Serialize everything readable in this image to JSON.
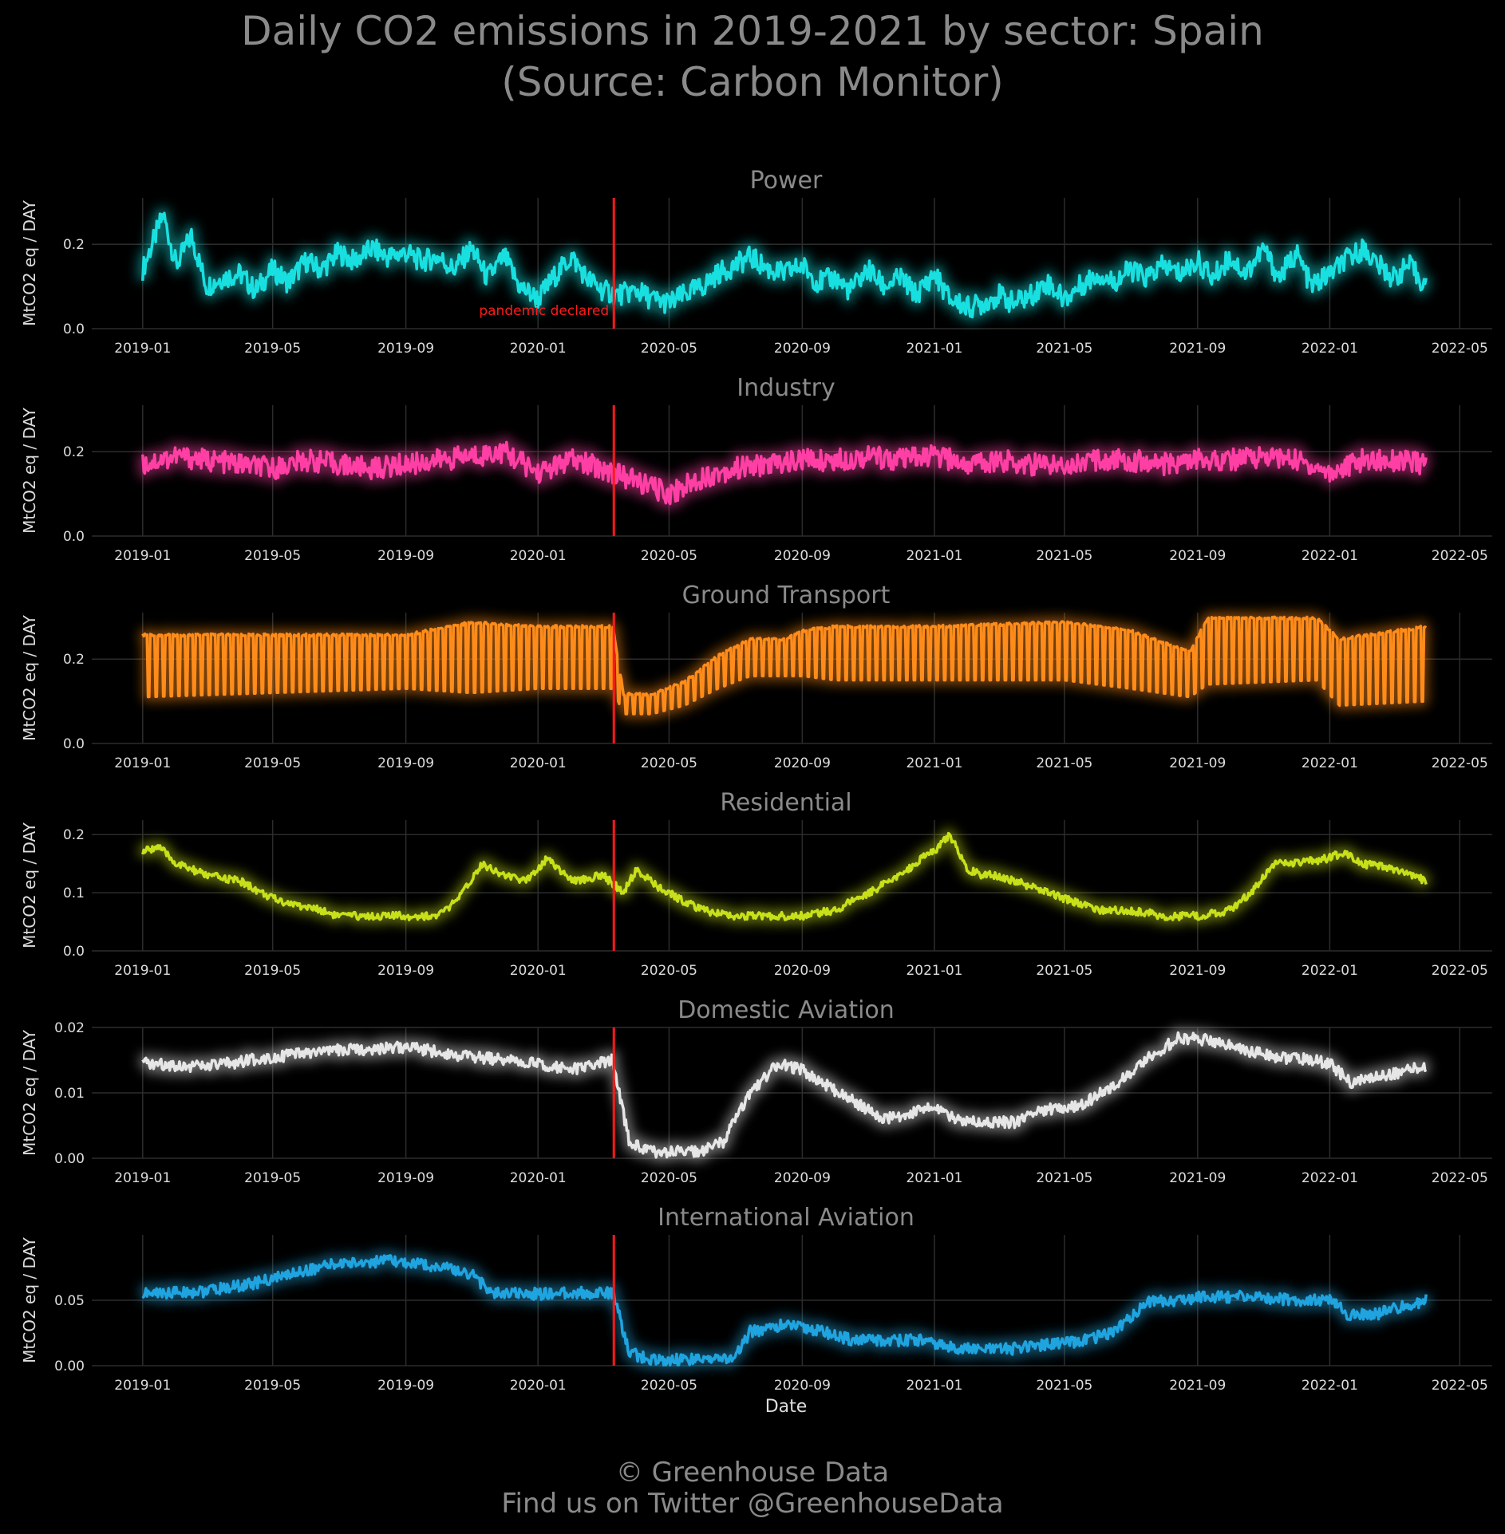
{
  "title_line1": "Daily CO2 emissions in 2019-2021 by sector: Spain",
  "title_line2": "(Source: Carbon Monitor)",
  "footer_line1": "© Greenhouse Data",
  "footer_line2": "Find us on Twitter @GreenhouseData",
  "ylabel": "MtCO2 eq / DAY",
  "xlabel": "Date",
  "annotation": "pandemic declared",
  "event_date": "2020-03-11",
  "event_color": "#ff1a1a",
  "x_ticks": [
    "2019-01",
    "2019-05",
    "2019-09",
    "2020-01",
    "2020-05",
    "2020-09",
    "2021-01",
    "2021-05",
    "2021-09",
    "2022-01",
    "2022-05"
  ],
  "x_range": [
    "2018-11-15",
    "2022-05-31"
  ],
  "chart_data": [
    {
      "type": "line",
      "title": "Power",
      "color": "#19e0e0",
      "ylim": [
        0,
        0.31
      ],
      "yticks": [
        "0.0",
        "0.2"
      ],
      "ytick_values": [
        0,
        0.2
      ],
      "series": [
        {
          "x": [
            "2019-01-01",
            "2019-01-20",
            "2019-02-01",
            "2019-02-15",
            "2019-03-01",
            "2019-03-15",
            "2019-04-01",
            "2019-04-15",
            "2019-05-01",
            "2019-05-15",
            "2019-06-01",
            "2019-06-15",
            "2019-07-01",
            "2019-07-15",
            "2019-08-01",
            "2019-08-15",
            "2019-09-01",
            "2019-09-15",
            "2019-10-01",
            "2019-10-15",
            "2019-11-01",
            "2019-11-15",
            "2019-12-01",
            "2019-12-15",
            "2020-01-01",
            "2020-01-15",
            "2020-02-01",
            "2020-02-15",
            "2020-03-01",
            "2020-03-15",
            "2020-04-01",
            "2020-04-15",
            "2020-05-01",
            "2020-05-15",
            "2020-06-01",
            "2020-06-15",
            "2020-07-01",
            "2020-07-15",
            "2020-08-01",
            "2020-08-15",
            "2020-09-01",
            "2020-09-15",
            "2020-10-01",
            "2020-10-15",
            "2020-11-01",
            "2020-11-15",
            "2020-12-01",
            "2020-12-15",
            "2021-01-01",
            "2021-01-15",
            "2021-02-01",
            "2021-02-15",
            "2021-03-01",
            "2021-03-15",
            "2021-04-01",
            "2021-04-15",
            "2021-05-01",
            "2021-05-15",
            "2021-06-01",
            "2021-06-15",
            "2021-07-01",
            "2021-07-15",
            "2021-08-01",
            "2021-08-15",
            "2021-09-01",
            "2021-09-15",
            "2021-10-01",
            "2021-10-15",
            "2021-11-01",
            "2021-11-15",
            "2021-12-01",
            "2021-12-15",
            "2022-01-01",
            "2022-01-15",
            "2022-02-01",
            "2022-02-15",
            "2022-03-01",
            "2022-03-15",
            "2022-03-31"
          ],
          "values": [
            0.14,
            0.27,
            0.15,
            0.22,
            0.1,
            0.12,
            0.13,
            0.09,
            0.14,
            0.11,
            0.16,
            0.14,
            0.18,
            0.16,
            0.19,
            0.17,
            0.18,
            0.16,
            0.17,
            0.14,
            0.19,
            0.12,
            0.17,
            0.1,
            0.07,
            0.12,
            0.17,
            0.12,
            0.09,
            0.08,
            0.09,
            0.07,
            0.06,
            0.08,
            0.1,
            0.13,
            0.15,
            0.17,
            0.14,
            0.13,
            0.15,
            0.11,
            0.12,
            0.09,
            0.14,
            0.1,
            0.12,
            0.08,
            0.13,
            0.07,
            0.05,
            0.06,
            0.08,
            0.06,
            0.08,
            0.11,
            0.07,
            0.1,
            0.13,
            0.11,
            0.14,
            0.12,
            0.15,
            0.13,
            0.16,
            0.12,
            0.17,
            0.13,
            0.19,
            0.12,
            0.18,
            0.1,
            0.13,
            0.16,
            0.19,
            0.15,
            0.12,
            0.15,
            0.1
          ]
        }
      ]
    },
    {
      "type": "line",
      "title": "Industry",
      "color": "#ff3fa4",
      "ylim": [
        0,
        0.31
      ],
      "yticks": [
        "0.0",
        "0.2"
      ],
      "ytick_values": [
        0,
        0.2
      ],
      "series": [
        {
          "x": [
            "2019-01-01",
            "2019-02-01",
            "2019-03-01",
            "2019-04-01",
            "2019-05-01",
            "2019-06-01",
            "2019-07-01",
            "2019-08-01",
            "2019-09-01",
            "2019-10-01",
            "2019-11-01",
            "2019-12-01",
            "2020-01-01",
            "2020-02-01",
            "2020-03-01",
            "2020-04-01",
            "2020-05-01",
            "2020-06-01",
            "2020-07-01",
            "2020-08-01",
            "2020-09-01",
            "2020-10-01",
            "2020-11-01",
            "2020-12-01",
            "2021-01-01",
            "2021-02-01",
            "2021-03-01",
            "2021-04-01",
            "2021-05-01",
            "2021-06-01",
            "2021-07-01",
            "2021-08-01",
            "2021-09-01",
            "2021-10-01",
            "2021-11-01",
            "2021-12-01",
            "2022-01-01",
            "2022-02-01",
            "2022-03-01",
            "2022-03-31"
          ],
          "values": [
            0.17,
            0.19,
            0.18,
            0.17,
            0.16,
            0.18,
            0.17,
            0.16,
            0.17,
            0.18,
            0.19,
            0.2,
            0.15,
            0.18,
            0.16,
            0.13,
            0.1,
            0.14,
            0.16,
            0.17,
            0.18,
            0.18,
            0.19,
            0.18,
            0.19,
            0.17,
            0.18,
            0.17,
            0.17,
            0.18,
            0.18,
            0.17,
            0.18,
            0.18,
            0.19,
            0.18,
            0.15,
            0.18,
            0.18,
            0.17
          ]
        }
      ]
    },
    {
      "type": "line",
      "title": "Ground Transport",
      "color": "#ff8c1a",
      "ylim": [
        0,
        0.31
      ],
      "yticks": [
        "0.0",
        "0.2"
      ],
      "ytick_values": [
        0,
        0.2
      ],
      "series": [
        {
          "x": [
            "2019-01-01",
            "2019-05-01",
            "2019-09-01",
            "2019-11-01",
            "2020-01-01",
            "2020-03-10",
            "2020-03-20",
            "2020-04-15",
            "2020-05-15",
            "2020-06-15",
            "2020-07-15",
            "2020-08-15",
            "2020-09-01",
            "2020-10-01",
            "2021-01-01",
            "2021-05-01",
            "2021-07-01",
            "2021-08-25",
            "2021-09-10",
            "2021-12-20",
            "2022-01-10",
            "2022-03-31"
          ],
          "upper": [
            0.26,
            0.26,
            0.26,
            0.29,
            0.28,
            0.28,
            0.12,
            0.12,
            0.15,
            0.21,
            0.25,
            0.25,
            0.27,
            0.28,
            0.28,
            0.29,
            0.27,
            0.22,
            0.3,
            0.3,
            0.25,
            0.28
          ],
          "lower": [
            0.11,
            0.12,
            0.13,
            0.12,
            0.13,
            0.13,
            0.07,
            0.07,
            0.09,
            0.13,
            0.16,
            0.16,
            0.16,
            0.15,
            0.15,
            0.15,
            0.13,
            0.11,
            0.14,
            0.15,
            0.09,
            0.1
          ]
        }
      ]
    },
    {
      "type": "line",
      "title": "Residential",
      "color": "#c8e01a",
      "ylim": [
        0,
        0.225
      ],
      "yticks": [
        "0.0",
        "0.1",
        "0.2"
      ],
      "ytick_values": [
        0,
        0.1,
        0.2
      ],
      "series": [
        {
          "x": [
            "2019-01-01",
            "2019-01-15",
            "2019-02-01",
            "2019-03-01",
            "2019-04-01",
            "2019-05-01",
            "2019-05-20",
            "2019-06-15",
            "2019-07-01",
            "2019-08-01",
            "2019-09-01",
            "2019-10-01",
            "2019-10-20",
            "2019-11-10",
            "2019-12-01",
            "2019-12-20",
            "2020-01-10",
            "2020-02-01",
            "2020-03-01",
            "2020-03-20",
            "2020-04-01",
            "2020-04-20",
            "2020-05-10",
            "2020-06-01",
            "2020-07-01",
            "2020-08-01",
            "2020-09-01",
            "2020-10-01",
            "2020-11-01",
            "2020-12-01",
            "2020-12-20",
            "2021-01-01",
            "2021-01-15",
            "2021-02-01",
            "2021-02-15",
            "2021-03-01",
            "2021-04-01",
            "2021-05-01",
            "2021-06-01",
            "2021-07-01",
            "2021-08-01",
            "2021-09-01",
            "2021-10-01",
            "2021-10-20",
            "2021-11-10",
            "2021-12-01",
            "2022-01-01",
            "2022-01-15",
            "2022-02-01",
            "2022-03-01",
            "2022-03-31"
          ],
          "values": [
            0.17,
            0.18,
            0.15,
            0.13,
            0.12,
            0.09,
            0.08,
            0.07,
            0.06,
            0.06,
            0.06,
            0.06,
            0.09,
            0.15,
            0.13,
            0.12,
            0.16,
            0.12,
            0.13,
            0.1,
            0.14,
            0.11,
            0.09,
            0.07,
            0.06,
            0.06,
            0.06,
            0.07,
            0.1,
            0.13,
            0.16,
            0.17,
            0.2,
            0.14,
            0.13,
            0.13,
            0.11,
            0.09,
            0.07,
            0.07,
            0.06,
            0.06,
            0.07,
            0.1,
            0.15,
            0.15,
            0.16,
            0.17,
            0.15,
            0.14,
            0.12
          ]
        }
      ]
    },
    {
      "type": "line",
      "title": "Domestic Aviation",
      "color": "#e6e6e6",
      "ylim": [
        0,
        0.02
      ],
      "yticks": [
        "0.00",
        "0.01",
        "0.02"
      ],
      "ytick_values": [
        0,
        0.01,
        0.02
      ],
      "series": [
        {
          "x": [
            "2019-01-01",
            "2019-03-01",
            "2019-05-01",
            "2019-07-01",
            "2019-09-01",
            "2019-11-01",
            "2020-01-01",
            "2020-02-01",
            "2020-03-10",
            "2020-03-25",
            "2020-04-15",
            "2020-06-01",
            "2020-06-20",
            "2020-07-15",
            "2020-08-10",
            "2020-09-01",
            "2020-10-15",
            "2020-11-15",
            "2020-12-15",
            "2021-01-01",
            "2021-01-20",
            "2021-02-15",
            "2021-03-15",
            "2021-04-15",
            "2021-05-15",
            "2021-06-15",
            "2021-07-15",
            "2021-08-15",
            "2021-09-15",
            "2021-10-15",
            "2021-11-15",
            "2021-12-15",
            "2022-01-01",
            "2022-01-20",
            "2022-02-15",
            "2022-03-31"
          ],
          "values": [
            0.0145,
            0.014,
            0.0155,
            0.0165,
            0.017,
            0.0155,
            0.0145,
            0.0135,
            0.015,
            0.0025,
            0.001,
            0.001,
            0.0025,
            0.01,
            0.0145,
            0.0135,
            0.009,
            0.006,
            0.007,
            0.008,
            0.006,
            0.0055,
            0.0055,
            0.0075,
            0.008,
            0.011,
            0.015,
            0.0185,
            0.018,
            0.0165,
            0.0155,
            0.015,
            0.0145,
            0.0115,
            0.0125,
            0.014
          ]
        }
      ]
    },
    {
      "type": "line",
      "title": "International Aviation",
      "color": "#1fa4e0",
      "ylim": [
        0,
        0.1
      ],
      "yticks": [
        "0.00",
        "0.05"
      ],
      "ytick_values": [
        0,
        0.05
      ],
      "series": [
        {
          "x": [
            "2019-01-01",
            "2019-03-01",
            "2019-04-15",
            "2019-06-01",
            "2019-07-01",
            "2019-08-15",
            "2019-10-01",
            "2019-11-01",
            "2019-11-20",
            "2020-01-01",
            "2020-03-10",
            "2020-03-25",
            "2020-04-15",
            "2020-06-01",
            "2020-07-01",
            "2020-07-15",
            "2020-08-15",
            "2020-09-15",
            "2020-10-15",
            "2020-11-15",
            "2020-12-15",
            "2021-01-15",
            "2021-02-15",
            "2021-03-15",
            "2021-04-15",
            "2021-05-15",
            "2021-06-15",
            "2021-07-15",
            "2021-09-01",
            "2021-10-15",
            "2021-12-01",
            "2022-01-01",
            "2022-01-20",
            "2022-02-15",
            "2022-03-31"
          ],
          "values": [
            0.055,
            0.057,
            0.063,
            0.073,
            0.078,
            0.08,
            0.076,
            0.07,
            0.055,
            0.055,
            0.056,
            0.01,
            0.004,
            0.005,
            0.006,
            0.026,
            0.031,
            0.027,
            0.02,
            0.019,
            0.02,
            0.014,
            0.012,
            0.013,
            0.016,
            0.018,
            0.026,
            0.048,
            0.052,
            0.053,
            0.05,
            0.05,
            0.038,
            0.04,
            0.05
          ]
        }
      ]
    }
  ]
}
